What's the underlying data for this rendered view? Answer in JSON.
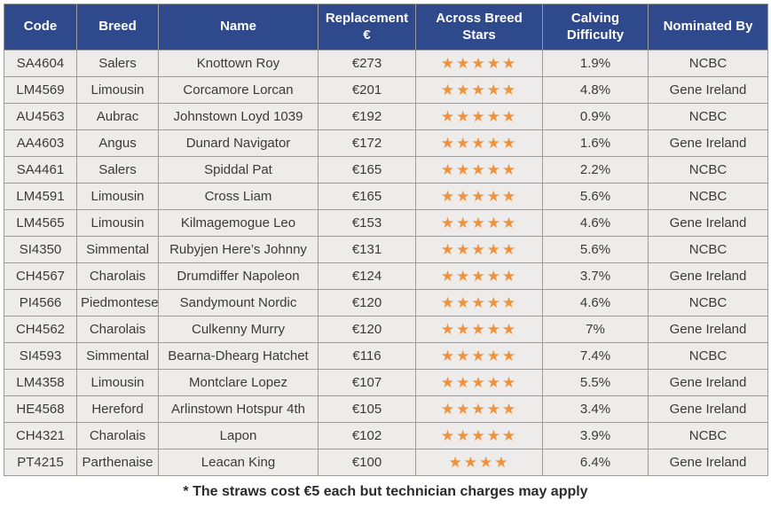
{
  "colors": {
    "header_bg": "#2f4a8c",
    "header_text": "#ffffff",
    "row_bg": "#edecea",
    "border": "#9b9b9b",
    "star_orange": "#f0923c",
    "body_text": "#3a3a3a"
  },
  "table": {
    "columns": [
      "Code",
      "Breed",
      "Name",
      "Replacement €",
      "Across Breed Stars",
      "Calving Difficulty",
      "Nominated By"
    ],
    "rows": [
      {
        "code": "SA4604",
        "breed": "Salers",
        "name": "Knottown Roy",
        "replacement": "€273",
        "stars": 5,
        "calving": "1.9%",
        "nominated": "NCBC"
      },
      {
        "code": "LM4569",
        "breed": "Limousin",
        "name": "Corcamore Lorcan",
        "replacement": "€201",
        "stars": 5,
        "calving": "4.8%",
        "nominated": "Gene Ireland"
      },
      {
        "code": "AU4563",
        "breed": "Aubrac",
        "name": "Johnstown Loyd 1039",
        "replacement": "€192",
        "stars": 5,
        "calving": "0.9%",
        "nominated": "NCBC"
      },
      {
        "code": "AA4603",
        "breed": "Angus",
        "name": "Dunard Navigator",
        "replacement": "€172",
        "stars": 5,
        "calving": "1.6%",
        "nominated": "Gene Ireland"
      },
      {
        "code": "SA4461",
        "breed": "Salers",
        "name": "Spiddal Pat",
        "replacement": "€165",
        "stars": 5,
        "calving": "2.2%",
        "nominated": "NCBC"
      },
      {
        "code": "LM4591",
        "breed": "Limousin",
        "name": "Cross Liam",
        "replacement": "€165",
        "stars": 5,
        "calving": "5.6%",
        "nominated": "NCBC"
      },
      {
        "code": "LM4565",
        "breed": "Limousin",
        "name": "Kilmagemogue Leo",
        "replacement": "€153",
        "stars": 5,
        "calving": "4.6%",
        "nominated": "Gene Ireland"
      },
      {
        "code": "SI4350",
        "breed": "Simmental",
        "name": "Rubyjen Here’s Johnny",
        "replacement": "€131",
        "stars": 5,
        "calving": "5.6%",
        "nominated": "NCBC"
      },
      {
        "code": "CH4567",
        "breed": "Charolais",
        "name": "Drumdiffer Napoleon",
        "replacement": "€124",
        "stars": 5,
        "calving": "3.7%",
        "nominated": "Gene Ireland"
      },
      {
        "code": "PI4566",
        "breed": "Piedmontese",
        "name": "Sandymount Nordic",
        "replacement": "€120",
        "stars": 5,
        "calving": "4.6%",
        "nominated": "NCBC"
      },
      {
        "code": "CH4562",
        "breed": "Charolais",
        "name": "Culkenny Murry",
        "replacement": "€120",
        "stars": 5,
        "calving": "7%",
        "nominated": "Gene Ireland"
      },
      {
        "code": "SI4593",
        "breed": "Simmental",
        "name": "Bearna-Dhearg Hatchet",
        "replacement": "€116",
        "stars": 5,
        "calving": "7.4%",
        "nominated": "NCBC"
      },
      {
        "code": "LM4358",
        "breed": "Limousin",
        "name": "Montclare Lopez",
        "replacement": "€107",
        "stars": 5,
        "calving": "5.5%",
        "nominated": "Gene Ireland"
      },
      {
        "code": "HE4568",
        "breed": "Hereford",
        "name": "Arlinstown Hotspur 4th",
        "replacement": "€105",
        "stars": 5,
        "calving": "3.4%",
        "nominated": "Gene Ireland"
      },
      {
        "code": "CH4321",
        "breed": "Charolais",
        "name": "Lapon",
        "replacement": "€102",
        "stars": 5,
        "calving": "3.9%",
        "nominated": "NCBC"
      },
      {
        "code": "PT4215",
        "breed": "Parthenaise",
        "name": "Leacan King",
        "replacement": "€100",
        "stars": 4,
        "calving": "6.4%",
        "nominated": "Gene Ireland"
      }
    ]
  },
  "footnote": "* The straws cost €5 each but technician charges may apply",
  "star_glyph": "★"
}
